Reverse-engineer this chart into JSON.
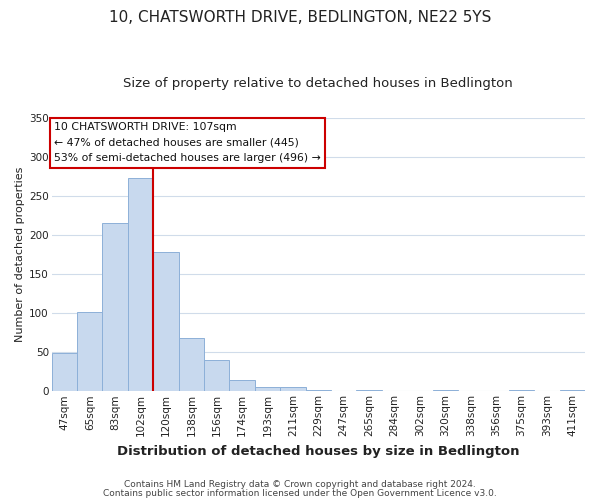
{
  "title": "10, CHATSWORTH DRIVE, BEDLINGTON, NE22 5YS",
  "subtitle": "Size of property relative to detached houses in Bedlington",
  "xlabel": "Distribution of detached houses by size in Bedlington",
  "ylabel": "Number of detached properties",
  "categories": [
    "47sqm",
    "65sqm",
    "83sqm",
    "102sqm",
    "120sqm",
    "138sqm",
    "156sqm",
    "174sqm",
    "193sqm",
    "211sqm",
    "229sqm",
    "247sqm",
    "265sqm",
    "284sqm",
    "302sqm",
    "320sqm",
    "338sqm",
    "356sqm",
    "375sqm",
    "393sqm",
    "411sqm"
  ],
  "values": [
    49,
    101,
    215,
    273,
    178,
    68,
    40,
    14,
    6,
    5,
    2,
    0,
    1,
    0,
    0,
    1,
    0,
    0,
    1,
    0,
    1
  ],
  "bar_color": "#c8d9ee",
  "bar_edge_color": "#8db0d8",
  "vline_x": 3.5,
  "vline_color": "#cc0000",
  "annotation_lines": [
    "10 CHATSWORTH DRIVE: 107sqm",
    "← 47% of detached houses are smaller (445)",
    "53% of semi-detached houses are larger (496) →"
  ],
  "annotation_box_color": "#ffffff",
  "annotation_box_edge": "#cc0000",
  "ylim": [
    0,
    350
  ],
  "yticks": [
    0,
    50,
    100,
    150,
    200,
    250,
    300,
    350
  ],
  "footer_line1": "Contains HM Land Registry data © Crown copyright and database right 2024.",
  "footer_line2": "Contains public sector information licensed under the Open Government Licence v3.0.",
  "title_fontsize": 11,
  "subtitle_fontsize": 9.5,
  "xlabel_fontsize": 9.5,
  "ylabel_fontsize": 8,
  "tick_fontsize": 7.5,
  "footer_fontsize": 6.5,
  "background_color": "#ffffff",
  "grid_color": "#d0dcea"
}
